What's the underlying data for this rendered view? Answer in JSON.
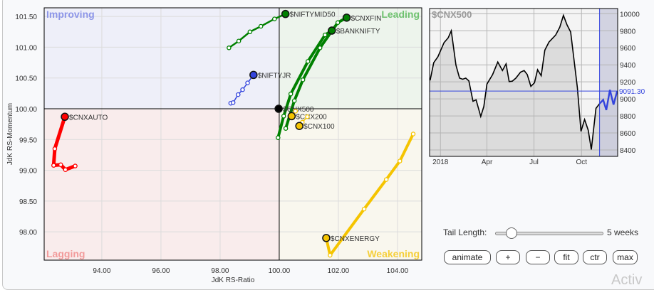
{
  "chart_data": [
    {
      "type": "scatter",
      "subtype": "relative-rotation-graph",
      "xlabel": "JdK RS-Ratio",
      "ylabel": "JdK RS-Momentum",
      "xlim": [
        92.05,
        104.82
      ],
      "ylim": [
        97.54,
        101.64
      ],
      "x_ticks": [
        "94.00",
        "96.00",
        "98.00",
        "100.00",
        "102.00",
        "104.00"
      ],
      "y_ticks": [
        "98.00",
        "98.50",
        "99.00",
        "99.50",
        "100.00",
        "100.50",
        "101.00",
        "101.50"
      ],
      "grid": true,
      "quadrants": {
        "top_left": {
          "label": "Improving",
          "color": "#8c95e8",
          "bg": "#eeeff9"
        },
        "top_right": {
          "label": "Leading",
          "color": "#6fc26f",
          "bg": "#edf4ec"
        },
        "bottom_left": {
          "label": "Lagging",
          "color": "#f29a9a",
          "bg": "#f9ecec"
        },
        "bottom_right": {
          "label": "Weakening",
          "color": "#f5cf3a",
          "bg": "#f9f7ee"
        }
      },
      "series": [
        {
          "name": "$NIFTYMID50",
          "color": "#008000",
          "tail": [
            [
              98.3,
              100.99
            ],
            [
              98.63,
              101.1
            ],
            [
              99.01,
              101.25
            ],
            [
              99.38,
              101.34
            ],
            [
              99.84,
              101.46
            ],
            [
              100.21,
              101.54
            ]
          ]
        },
        {
          "name": "$CNXFIN",
          "color": "#008000",
          "tail": [
            [
              100.22,
              99.68
            ],
            [
              100.51,
              100.13
            ],
            [
              100.8,
              100.47
            ],
            [
              101.38,
              100.99
            ],
            [
              101.98,
              101.4
            ],
            [
              102.28,
              101.48
            ]
          ]
        },
        {
          "name": "$BANKNIFTY",
          "color": "#008000",
          "tail": [
            [
              99.96,
              99.53
            ],
            [
              100.15,
              99.88
            ],
            [
              100.39,
              100.24
            ],
            [
              100.97,
              100.77
            ],
            [
              101.55,
              101.2
            ],
            [
              101.78,
              101.27
            ]
          ]
        },
        {
          "name": "$NIFTYJR",
          "color": "#3344dd",
          "tail": [
            [
              98.36,
              100.09
            ],
            [
              98.44,
              100.1
            ],
            [
              98.61,
              100.23
            ],
            [
              98.76,
              100.31
            ],
            [
              98.93,
              100.42
            ],
            [
              99.13,
              100.55
            ]
          ]
        },
        {
          "name": "$CNX500",
          "color": "#000000",
          "tail": [
            [
              99.98,
              100.0
            ]
          ]
        },
        {
          "name": "$CNX200",
          "color": "#f5c400",
          "tail": [
            [
              100.55,
              99.96
            ],
            [
              100.42,
              99.88
            ]
          ]
        },
        {
          "name": "$CNX100",
          "color": "#f5c400",
          "tail": [
            [
              100.95,
              99.87
            ],
            [
              100.78,
              99.78
            ],
            [
              100.68,
              99.72
            ]
          ]
        },
        {
          "name": "$CNXAUTO",
          "color": "#ff0000",
          "tail": [
            [
              93.1,
              99.07
            ],
            [
              92.77,
              99.01
            ],
            [
              92.61,
              99.09
            ],
            [
              92.37,
              99.08
            ],
            [
              92.41,
              99.35
            ],
            [
              92.75,
              99.87
            ]
          ]
        },
        {
          "name": "$CNXENERGY",
          "color": "#f5c400",
          "tail": [
            [
              104.53,
              99.59
            ],
            [
              104.08,
              99.15
            ],
            [
              103.62,
              98.85
            ],
            [
              102.87,
              98.37
            ],
            [
              101.72,
              97.62
            ],
            [
              101.59,
              97.9
            ]
          ]
        }
      ]
    },
    {
      "type": "line",
      "title": "$CNX500",
      "ylim": [
        8325,
        10061
      ],
      "xlim": [
        "2017-12-11",
        "2018-12-10"
      ],
      "x_ticks": [
        {
          "date": "2018-01-01",
          "label": "2018"
        },
        {
          "date": "2018-04-01",
          "label": "Apr"
        },
        {
          "date": "2018-07-01",
          "label": "Jul"
        },
        {
          "date": "2018-10-01",
          "label": "Oct"
        }
      ],
      "y_ticks": [
        "8400",
        "8600",
        "8800",
        "9000",
        "9200",
        "9400",
        "9600",
        "9800",
        "10000"
      ],
      "grid": true,
      "line_color": "#000000",
      "highlight_color": "#3344dd",
      "current_value": "9091.30",
      "highlight_start": "2018-11-05",
      "dates": [
        "2017-12-12",
        "2017-12-19",
        "2017-12-27",
        "2018-01-08",
        "2018-01-16",
        "2018-01-22",
        "2018-01-31",
        "2018-02-07",
        "2018-02-13",
        "2018-02-19",
        "2018-02-25",
        "2018-03-05",
        "2018-03-11",
        "2018-03-20",
        "2018-03-26",
        "2018-04-01",
        "2018-04-12",
        "2018-04-22",
        "2018-05-01",
        "2018-05-08",
        "2018-05-14",
        "2018-05-20",
        "2018-05-27",
        "2018-06-05",
        "2018-06-12",
        "2018-06-18",
        "2018-06-25",
        "2018-07-02",
        "2018-07-08",
        "2018-07-15",
        "2018-07-22",
        "2018-07-30",
        "2018-08-12",
        "2018-08-20",
        "2018-08-27",
        "2018-09-03",
        "2018-09-10",
        "2018-09-23",
        "2018-09-30",
        "2018-10-07",
        "2018-10-14",
        "2018-10-20",
        "2018-10-29",
        "2018-11-05",
        "2018-11-12",
        "2018-11-18",
        "2018-11-25",
        "2018-12-02",
        "2018-12-09"
      ],
      "values": [
        9217,
        9425,
        9494,
        9661,
        9717,
        9800,
        9397,
        9244,
        9231,
        9244,
        9211,
        8972,
        8989,
        8794,
        8911,
        9175,
        9286,
        9433,
        9333,
        9411,
        9203,
        9208,
        9244,
        9314,
        9333,
        9286,
        9147,
        9189,
        9342,
        9272,
        9572,
        9667,
        9750,
        9842,
        9981,
        9869,
        9786,
        9133,
        8619,
        8758,
        8633,
        8405,
        8889,
        8944,
        8989,
        8869,
        9106,
        8933,
        9091
      ]
    }
  ],
  "controls": {
    "tail_length_label": "Tail Length:",
    "tail_length_value": 5,
    "tail_length_text": "5 weeks",
    "buttons": [
      "animate",
      "+",
      "−",
      "fit",
      "ctr",
      "max"
    ]
  },
  "watermark": "Activ"
}
